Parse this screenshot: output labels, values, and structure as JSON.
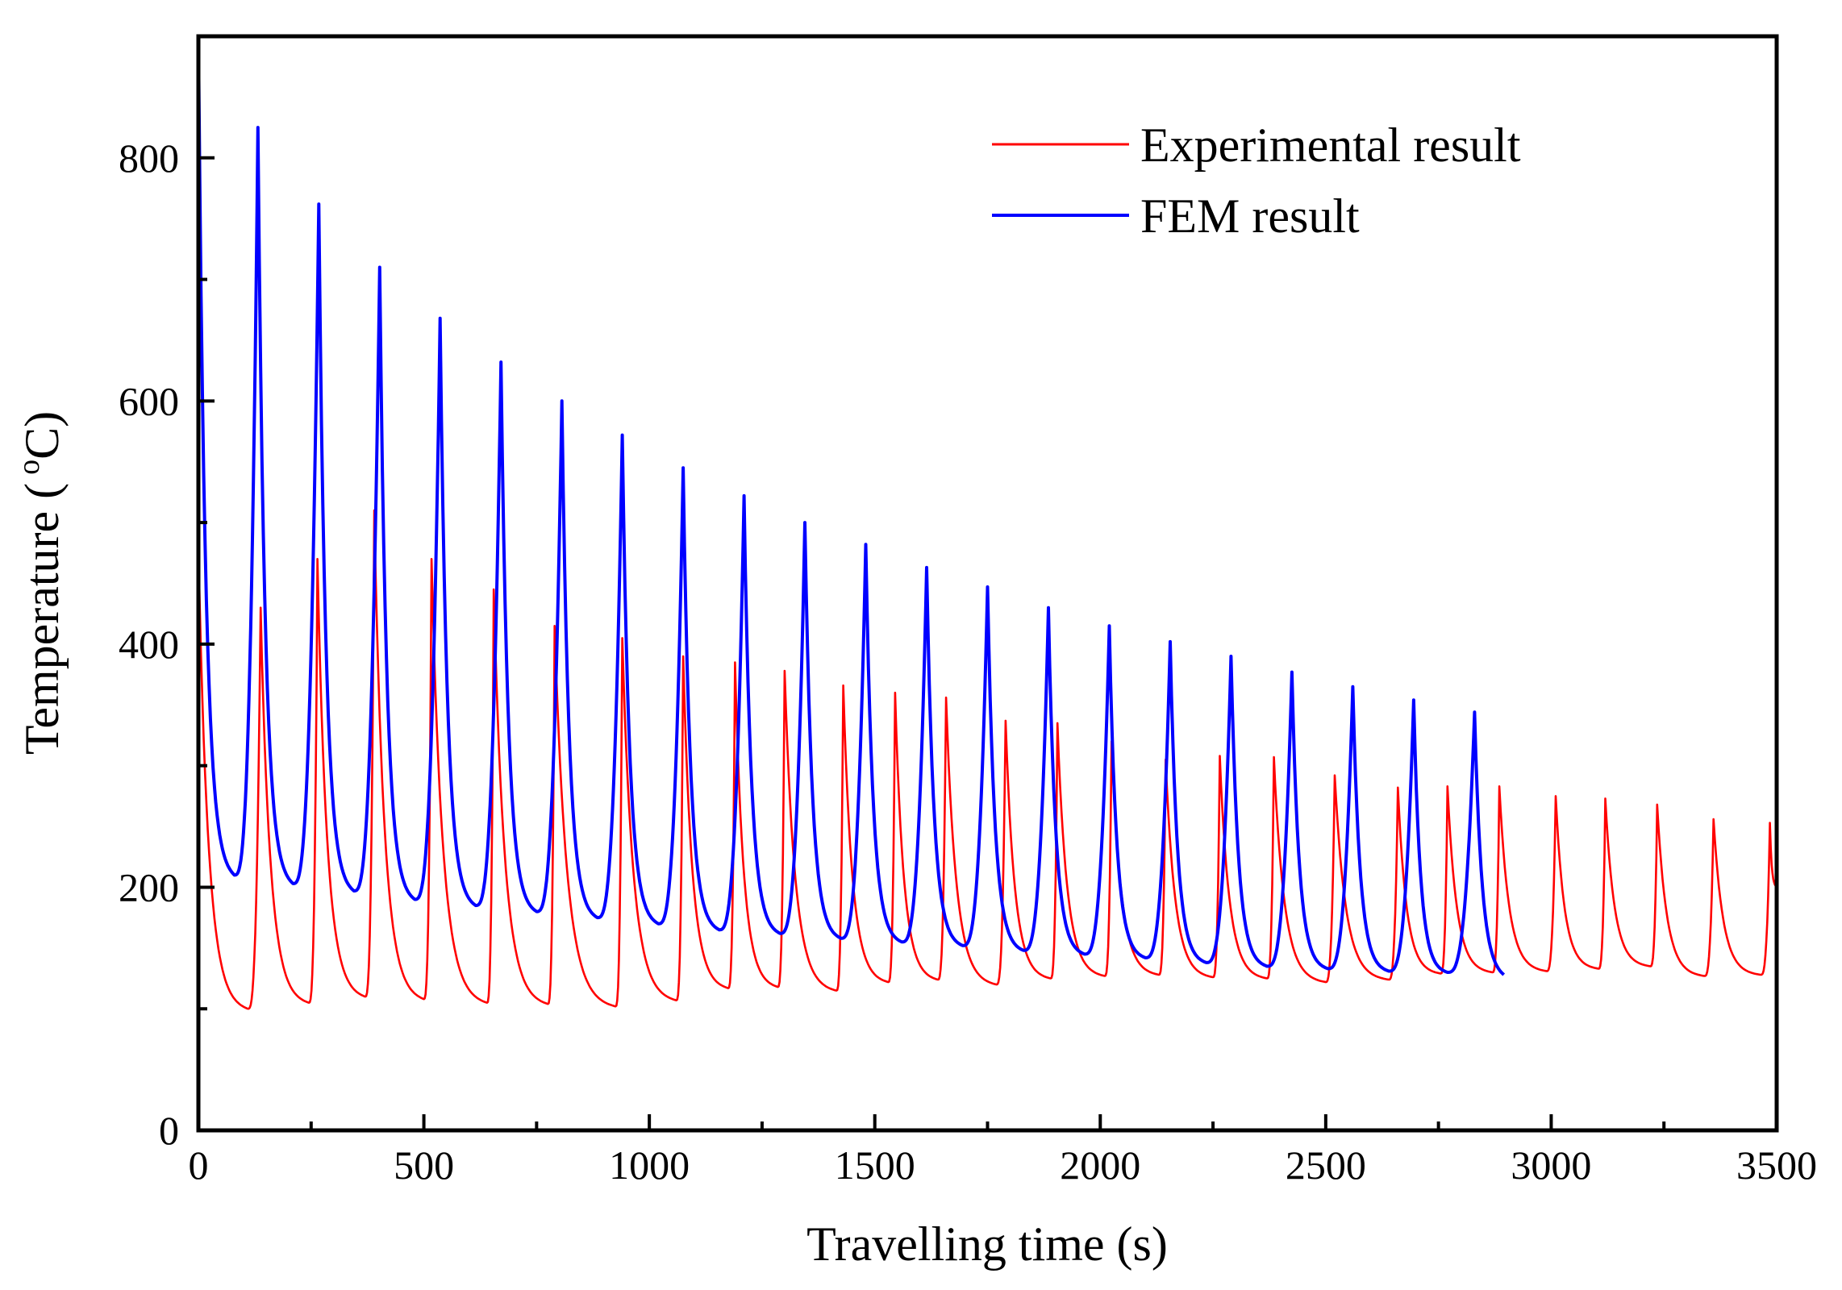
{
  "chart_data": {
    "type": "line",
    "title": "",
    "xlabel": "Travelling time (s)",
    "ylabel_main": "Temperature (",
    "ylabel_sup": "o",
    "ylabel_unit": "C)",
    "xlim": [
      0,
      3500
    ],
    "ylim": [
      0,
      900
    ],
    "xticks": [
      "0",
      "500",
      "1000",
      "1500",
      "2000",
      "2500",
      "3000",
      "3500"
    ],
    "yticks": [
      "0",
      "200",
      "400",
      "600",
      "800"
    ],
    "grid": false,
    "legend_position": "top-right",
    "series": [
      {
        "name": "Experimental result",
        "color": "#ff0000",
        "start_value": 480,
        "peaks": [
          [
            138,
            430
          ],
          [
            264,
            470
          ],
          [
            390,
            510
          ],
          [
            517,
            470
          ],
          [
            655,
            445
          ],
          [
            790,
            415
          ],
          [
            940,
            405
          ],
          [
            1075,
            390
          ],
          [
            1190,
            385
          ],
          [
            1300,
            378
          ],
          [
            1430,
            366
          ],
          [
            1545,
            360
          ],
          [
            1658,
            356
          ],
          [
            1790,
            337
          ],
          [
            1905,
            335
          ],
          [
            2025,
            320
          ],
          [
            2145,
            305
          ],
          [
            2265,
            308
          ],
          [
            2385,
            307
          ],
          [
            2520,
            292
          ],
          [
            2660,
            282
          ],
          [
            2770,
            283
          ],
          [
            2885,
            283
          ],
          [
            3010,
            275
          ],
          [
            3120,
            273
          ],
          [
            3235,
            268
          ],
          [
            3360,
            256
          ],
          [
            3485,
            253
          ]
        ],
        "troughs": [
          [
            110,
            100
          ],
          [
            245,
            105
          ],
          [
            370,
            110
          ],
          [
            500,
            108
          ],
          [
            640,
            105
          ],
          [
            775,
            104
          ],
          [
            925,
            102
          ],
          [
            1060,
            107
          ],
          [
            1175,
            117
          ],
          [
            1285,
            118
          ],
          [
            1415,
            115
          ],
          [
            1530,
            122
          ],
          [
            1640,
            124
          ],
          [
            1770,
            120
          ],
          [
            1890,
            125
          ],
          [
            2010,
            127
          ],
          [
            2130,
            128
          ],
          [
            2250,
            126
          ],
          [
            2370,
            125
          ],
          [
            2500,
            122
          ],
          [
            2640,
            124
          ],
          [
            2755,
            129
          ],
          [
            2870,
            130
          ],
          [
            2990,
            131
          ],
          [
            3105,
            133
          ],
          [
            3220,
            135
          ],
          [
            3340,
            127
          ],
          [
            3465,
            128
          ]
        ],
        "end_value": 200
      },
      {
        "name": "FEM result",
        "color": "#0000ff",
        "start_value": 900,
        "peaks": [
          [
            132,
            825
          ],
          [
            267,
            762
          ],
          [
            402,
            710
          ],
          [
            536,
            668
          ],
          [
            671,
            632
          ],
          [
            806,
            600
          ],
          [
            940,
            572
          ],
          [
            1075,
            545
          ],
          [
            1210,
            522
          ],
          [
            1345,
            500
          ],
          [
            1480,
            482
          ],
          [
            1615,
            463
          ],
          [
            1750,
            447
          ],
          [
            1885,
            430
          ],
          [
            2020,
            415
          ],
          [
            2155,
            402
          ],
          [
            2290,
            390
          ],
          [
            2425,
            377
          ],
          [
            2560,
            365
          ],
          [
            2695,
            354
          ],
          [
            2830,
            344
          ]
        ],
        "troughs": [
          [
            80,
            210
          ],
          [
            210,
            203
          ],
          [
            345,
            197
          ],
          [
            480,
            190
          ],
          [
            615,
            185
          ],
          [
            750,
            180
          ],
          [
            885,
            175
          ],
          [
            1020,
            170
          ],
          [
            1155,
            165
          ],
          [
            1290,
            162
          ],
          [
            1425,
            158
          ],
          [
            1560,
            155
          ],
          [
            1695,
            152
          ],
          [
            1830,
            148
          ],
          [
            1965,
            145
          ],
          [
            2100,
            142
          ],
          [
            2235,
            138
          ],
          [
            2370,
            135
          ],
          [
            2505,
            133
          ],
          [
            2640,
            131
          ],
          [
            2770,
            130
          ]
        ],
        "end_value": 128,
        "end_x": 2895
      }
    ]
  }
}
